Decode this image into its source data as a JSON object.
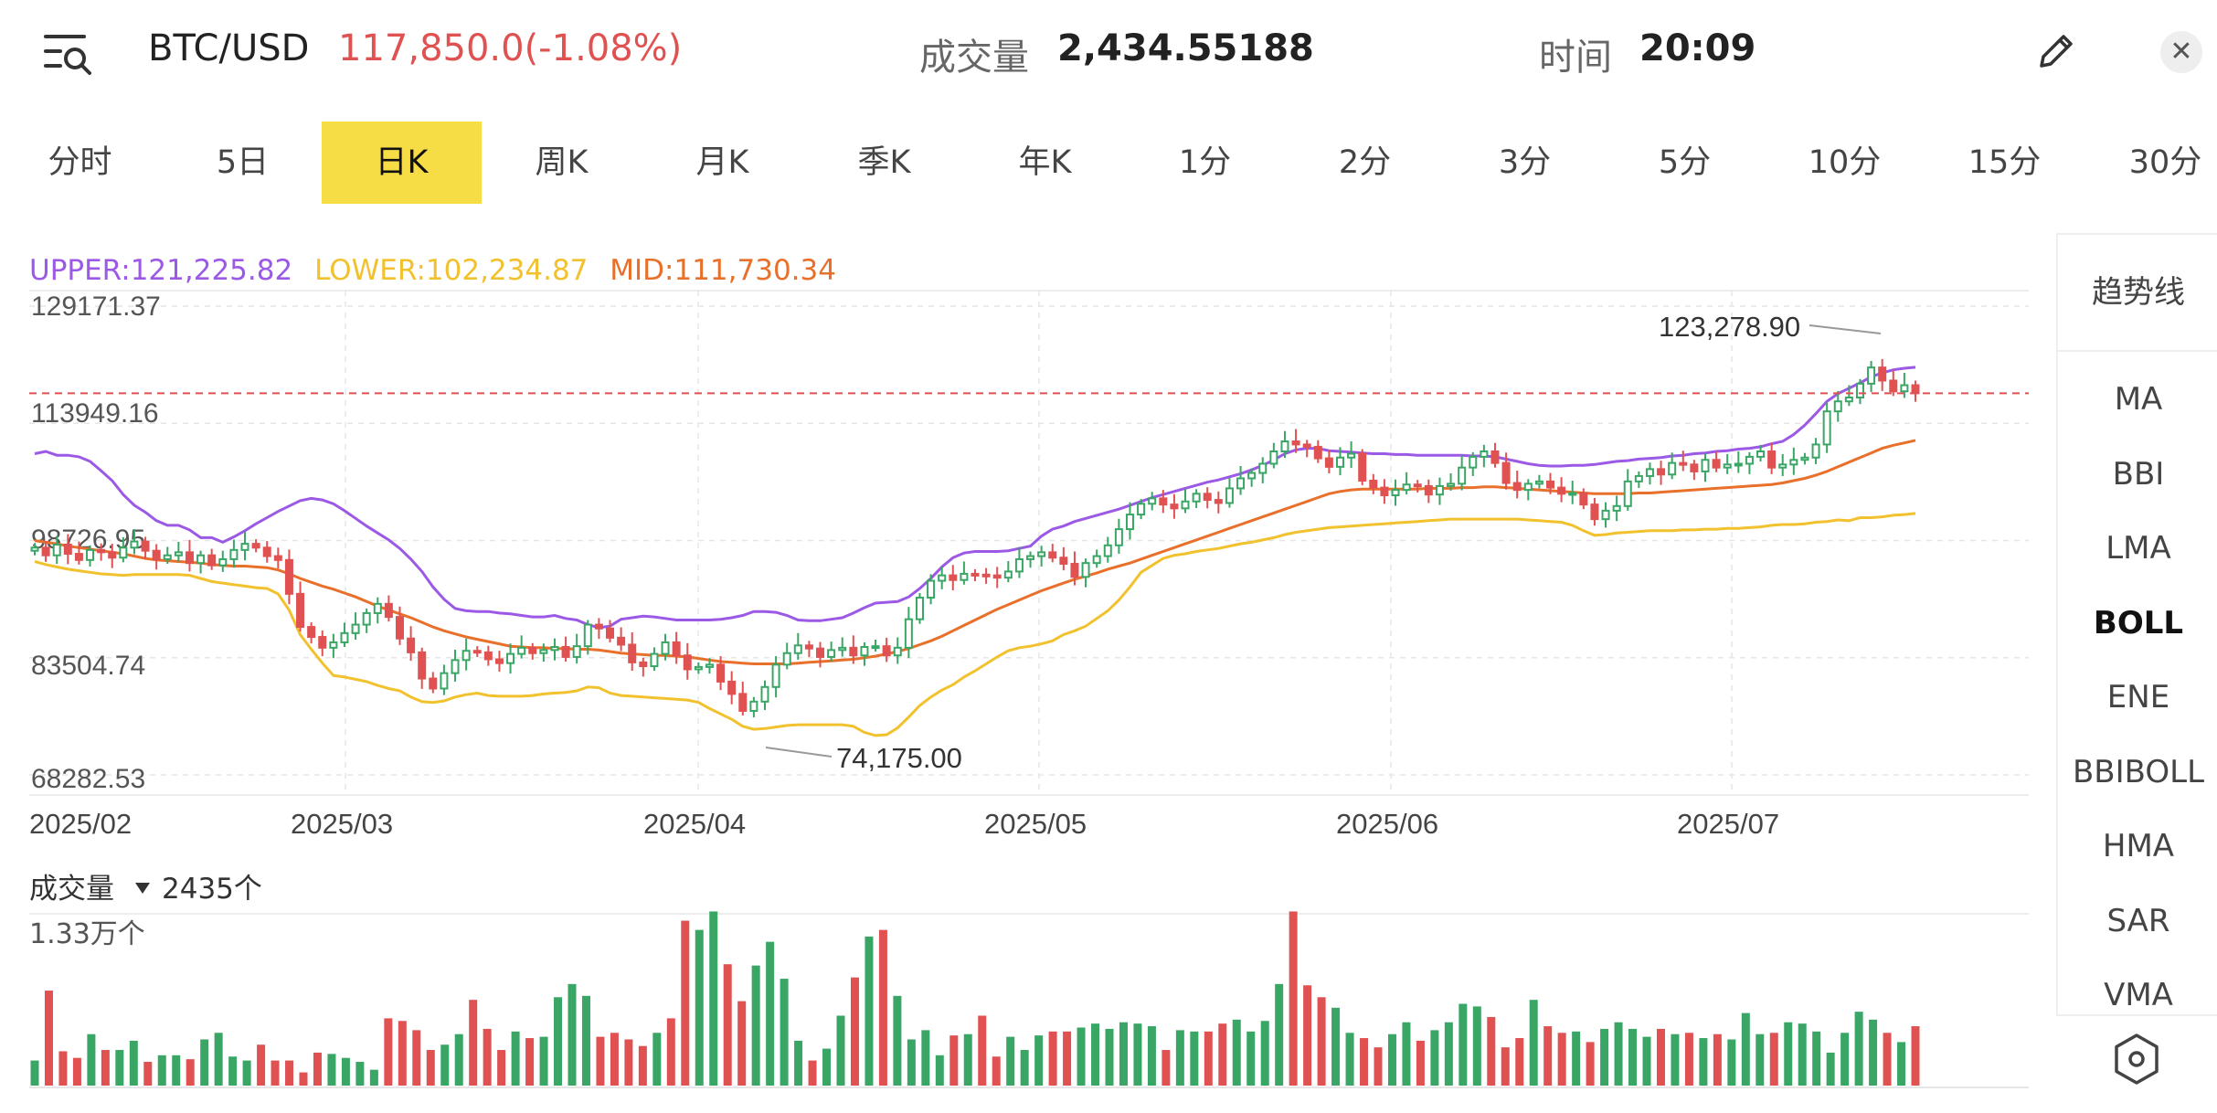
{
  "header": {
    "symbol": "BTC/USD",
    "price_change": "117,850.0(-1.08%)",
    "volume_label": "成交量",
    "volume_value": "2,434.55188",
    "time_label": "时间",
    "time_value": "20:09",
    "close_glyph": "✕",
    "menu_icon": "list-search-icon",
    "edit_icon": "pencil-icon"
  },
  "tabs": [
    "分时",
    "5日",
    "日K",
    "周K",
    "月K",
    "季K",
    "年K",
    "1分",
    "2分",
    "3分",
    "5分",
    "10分",
    "15分",
    "30分"
  ],
  "active_tab": "日K",
  "indicator": {
    "upper": "UPPER:121,225.82",
    "lower": "LOWER:102,234.87",
    "mid": "MID:111,730.34"
  },
  "side_panel": {
    "trend": "趋势线",
    "items": [
      "MA",
      "BBI",
      "LMA",
      "BOLL",
      "ENE",
      "BBIBOLL",
      "HMA",
      "SAR",
      "VMA"
    ],
    "active": "BOLL",
    "settings_icon": "hexagon-settings-icon"
  },
  "colors": {
    "up": "#3aa666",
    "down": "#e05252",
    "upper": "#9b59e6",
    "mid": "#e8702a",
    "lower": "#f2c12e",
    "active_tab": "#f7dd45"
  },
  "chart_data": {
    "type": "candlestick",
    "y_ticks": [
      "129171.37",
      "113949.16",
      "98726.95",
      "83504.74",
      "68282.53"
    ],
    "ylim": [
      68282.53,
      129171.37
    ],
    "x_labels": [
      "2025/02",
      "2025/03",
      "2025/04",
      "2025/05",
      "2025/06",
      "2025/07"
    ],
    "current_price": 117850.0,
    "annotations": [
      {
        "text": "123,278.90",
        "value": 123278.9,
        "type": "high"
      },
      {
        "text": "74,175.00",
        "value": 74175.0,
        "type": "low"
      }
    ],
    "close": [
      97800,
      96800,
      98200,
      97000,
      96200,
      97500,
      97200,
      96500,
      97800,
      98600,
      97400,
      96300,
      96800,
      97200,
      95800,
      96800,
      95500,
      96300,
      97500,
      98300,
      97800,
      96700,
      96200,
      91800,
      87500,
      86200,
      84800,
      85500,
      86700,
      87800,
      89300,
      90500,
      88800,
      86000,
      84200,
      80800,
      79500,
      81500,
      83200,
      84400,
      84200,
      83300,
      82800,
      84000,
      84800,
      84100,
      84500,
      84900,
      83600,
      85000,
      87800,
      87300,
      86100,
      85200,
      82900,
      82400,
      84000,
      85500,
      83800,
      82000,
      82300,
      82600,
      80400,
      78800,
      76600,
      77800,
      79700,
      82600,
      84100,
      85100,
      84700,
      83600,
      84500,
      84800,
      83800,
      84900,
      85000,
      83800,
      84800,
      88500,
      91300,
      93500,
      94200,
      93600,
      94400,
      94300,
      94200,
      93900,
      94700,
      96300,
      96700,
      97200,
      96500,
      95700,
      94000,
      95800,
      96700,
      98100,
      100200,
      102100,
      103500,
      104200,
      103400,
      102900,
      103800,
      104800,
      104000,
      103600,
      105500,
      106800,
      107500,
      108700,
      110300,
      111600,
      111200,
      110900,
      109400,
      108300,
      109500,
      110000,
      106500,
      105600,
      104600,
      105300,
      106000,
      105800,
      104700,
      105800,
      106100,
      108200,
      109600,
      110300,
      108800,
      106200,
      105300,
      106100,
      106400,
      105600,
      104800,
      104900,
      103400,
      101500,
      102600,
      103200,
      106400,
      107100,
      108000,
      107300,
      108800,
      108600,
      107700,
      109200,
      108200,
      108600,
      108700,
      109600,
      110300,
      108200,
      108600,
      109200,
      109500,
      111200,
      115500,
      116800,
      117300,
      119100,
      121200,
      119500,
      118100,
      118900,
      117850
    ],
    "upper": [
      110000,
      110300,
      109800,
      109800,
      109600,
      109000,
      107800,
      106500,
      104700,
      103300,
      102400,
      101300,
      100700,
      100700,
      100100,
      99100,
      99100,
      98500,
      99200,
      100000,
      100900,
      101700,
      102500,
      103200,
      103900,
      104200,
      104000,
      103500,
      102600,
      101600,
      100600,
      99700,
      98800,
      97700,
      96300,
      94700,
      92700,
      91100,
      89900,
      89600,
      89500,
      89500,
      89300,
      89200,
      89000,
      88800,
      88800,
      89000,
      88600,
      88400,
      87800,
      87400,
      87600,
      88500,
      88700,
      88900,
      88800,
      88600,
      88400,
      88400,
      88400,
      88400,
      88500,
      88700,
      89000,
      89500,
      89500,
      89400,
      89000,
      88400,
      88300,
      88300,
      88500,
      88700,
      89300,
      90000,
      90600,
      90700,
      90800,
      91400,
      92500,
      93800,
      95300,
      96500,
      97100,
      97300,
      97300,
      97300,
      97400,
      97700,
      98000,
      99300,
      100200,
      100600,
      101200,
      101600,
      102000,
      102400,
      102800,
      103300,
      103800,
      104300,
      104700,
      105100,
      105500,
      105900,
      106300,
      106600,
      107000,
      107400,
      107900,
      108500,
      109200,
      110000,
      110500,
      110700,
      110700,
      110400,
      110300,
      110200,
      110100,
      110000,
      110000,
      109900,
      109900,
      109800,
      109800,
      109800,
      109800,
      109800,
      109700,
      109700,
      109600,
      109300,
      109000,
      108700,
      108500,
      108400,
      108400,
      108500,
      108500,
      108600,
      108800,
      109000,
      109100,
      109300,
      109400,
      109500,
      109700,
      109800,
      110000,
      110100,
      110300,
      110400,
      110600,
      110700,
      110900,
      111300,
      111600,
      112500,
      113700,
      115200,
      116800,
      117800,
      118500,
      119200,
      120000,
      120500,
      120900,
      121100,
      121225.82
    ],
    "mid": [
      98700,
      98500,
      98300,
      98000,
      97800,
      97600,
      97400,
      97200,
      97000,
      96700,
      96400,
      96200,
      96100,
      96000,
      95900,
      95800,
      95600,
      95500,
      95400,
      95400,
      95300,
      95200,
      94900,
      94400,
      93800,
      93300,
      92800,
      92400,
      91900,
      91400,
      90800,
      90200,
      89700,
      89200,
      88700,
      88100,
      87500,
      87000,
      86600,
      86200,
      85900,
      85600,
      85300,
      85000,
      84900,
      84800,
      84800,
      84700,
      84700,
      84600,
      84600,
      84500,
      84300,
      84100,
      84000,
      83900,
      83800,
      83800,
      83700,
      83600,
      83400,
      83200,
      83000,
      82900,
      82800,
      82700,
      82700,
      82700,
      82700,
      82800,
      82900,
      83000,
      83100,
      83200,
      83300,
      83500,
      83700,
      84000,
      84300,
      84700,
      85200,
      85700,
      86300,
      87000,
      87700,
      88400,
      89100,
      89800,
      90400,
      91000,
      91600,
      92200,
      92700,
      93200,
      93700,
      94100,
      94500,
      95000,
      95400,
      95800,
      96300,
      96800,
      97300,
      97800,
      98300,
      98800,
      99300,
      99800,
      100300,
      100800,
      101300,
      101800,
      102300,
      102800,
      103300,
      103800,
      104300,
      104800,
      105100,
      105300,
      105400,
      105400,
      105400,
      105400,
      105400,
      105400,
      105500,
      105500,
      105500,
      105600,
      105600,
      105700,
      105700,
      105600,
      105500,
      105400,
      105300,
      105200,
      105100,
      105000,
      104900,
      104800,
      104800,
      104800,
      104800,
      104900,
      104900,
      105000,
      105100,
      105200,
      105300,
      105400,
      105500,
      105600,
      105700,
      105800,
      105900,
      106000,
      106200,
      106500,
      106800,
      107200,
      107700,
      108300,
      108900,
      109500,
      110100,
      110700,
      111100,
      111400,
      111730.34
    ],
    "lower": [
      96000,
      95600,
      95300,
      95000,
      94800,
      94600,
      94400,
      94300,
      94200,
      94300,
      94300,
      94300,
      94300,
      94300,
      94200,
      93800,
      93400,
      93200,
      93000,
      92800,
      92600,
      92500,
      91800,
      89700,
      86500,
      84600,
      82800,
      81200,
      81000,
      80700,
      80400,
      79900,
      79500,
      79200,
      78400,
      77800,
      77700,
      77900,
      78400,
      78700,
      78900,
      78600,
      78500,
      78500,
      78500,
      78600,
      78800,
      78900,
      79000,
      79200,
      79700,
      79600,
      78900,
      78600,
      78500,
      78400,
      78300,
      78200,
      78100,
      78000,
      77700,
      76900,
      76200,
      75500,
      74600,
      74200,
      74300,
      74500,
      74700,
      74800,
      74800,
      74800,
      74800,
      74800,
      74600,
      73800,
      73400,
      73500,
      74400,
      75800,
      77300,
      78400,
      79300,
      80000,
      81000,
      81800,
      82700,
      83600,
      84400,
      84800,
      85000,
      85300,
      85700,
      86500,
      87000,
      87600,
      88600,
      89600,
      91000,
      92700,
      94600,
      95500,
      96400,
      96800,
      97000,
      97300,
      97500,
      97700,
      98000,
      98300,
      98500,
      98800,
      99100,
      99500,
      99800,
      100000,
      100200,
      100400,
      100500,
      100600,
      100700,
      100800,
      100900,
      101000,
      101100,
      101200,
      101300,
      101400,
      101500,
      101500,
      101500,
      101500,
      101500,
      101500,
      101500,
      101400,
      101300,
      101200,
      101100,
      100700,
      100000,
      99400,
      99500,
      99700,
      99800,
      99900,
      100000,
      100000,
      100000,
      100100,
      100100,
      100200,
      100200,
      100300,
      100300,
      100400,
      100500,
      100700,
      100800,
      100800,
      100900,
      101100,
      101200,
      101400,
      101300,
      101700,
      101700,
      101800,
      102000,
      102100,
      102234.87
    ],
    "volume": {
      "label": "成交量",
      "current": "2435个",
      "max_label": "1.33万个",
      "max": 13300,
      "values": [
        1900,
        7200,
        2600,
        2100,
        3900,
        2700,
        2700,
        3400,
        1800,
        2300,
        2300,
        2000,
        3500,
        4000,
        2200,
        1900,
        3100,
        1900,
        1900,
        1000,
        2500,
        2400,
        2100,
        1800,
        1200,
        5100,
        4900,
        4200,
        2700,
        3100,
        3900,
        6500,
        4300,
        2700,
        4100,
        3600,
        3700,
        6700,
        7700,
        6800,
        3700,
        4000,
        3500,
        3000,
        4000,
        5100,
        12500,
        11800,
        13200,
        9200,
        6400,
        9100,
        10900,
        8100,
        3400,
        1900,
        2800,
        5300,
        8200,
        11300,
        11800,
        6800,
        3500,
        4200,
        2300,
        3800,
        3900,
        5300,
        2200,
        3700,
        2700,
        3800,
        4100,
        4100,
        4400,
        4700,
        4300,
        4800,
        4700,
        4500,
        2700,
        4200,
        4100,
        4100,
        4700,
        5000,
        4100,
        4900,
        7700,
        13200,
        7600,
        6700,
        5900,
        4000,
        3600,
        2900,
        3900,
        4800,
        3400,
        4200,
        4800,
        6200,
        6000,
        5200,
        2900,
        3600,
        6500,
        4500,
        4000,
        4100,
        3300,
        4300,
        4800,
        4300,
        3700,
        4300,
        3900,
        4000,
        3600,
        3900,
        3500,
        5500,
        3900,
        4000,
        4800,
        4700,
        4100,
        2500,
        4000,
        5600,
        5000,
        4000,
        3300,
        4500
      ]
    }
  }
}
